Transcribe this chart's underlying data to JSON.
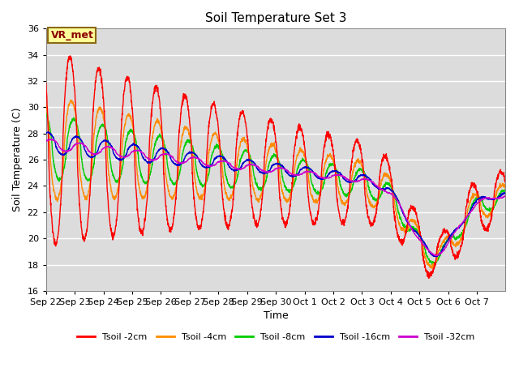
{
  "title": "Soil Temperature Set 3",
  "xlabel": "Time",
  "ylabel": "Soil Temperature (C)",
  "ylim": [
    16,
    36
  ],
  "yticks": [
    16,
    18,
    20,
    22,
    24,
    26,
    28,
    30,
    32,
    34,
    36
  ],
  "bg_color": "#dcdcdc",
  "grid_color": "white",
  "annotation_text": "VR_met",
  "annotation_box_color": "#ffff99",
  "annotation_border_color": "#8b6914",
  "series": [
    {
      "label": "Tsoil -2cm",
      "color": "#ff0000"
    },
    {
      "label": "Tsoil -4cm",
      "color": "#ff8c00"
    },
    {
      "label": "Tsoil -8cm",
      "color": "#00cc00"
    },
    {
      "label": "Tsoil -16cm",
      "color": "#0000cc"
    },
    {
      "label": "Tsoil -32cm",
      "color": "#cc00cc"
    }
  ],
  "x_tick_labels": [
    "Sep 22",
    "Sep 23",
    "Sep 24",
    "Sep 25",
    "Sep 26",
    "Sep 27",
    "Sep 28",
    "Sep 29",
    "Sep 30",
    "Oct 1",
    "Oct 2",
    "Oct 3",
    "Oct 4",
    "Oct 5",
    "Oct 6",
    "Oct 7"
  ],
  "num_days": 16,
  "points_per_day": 144
}
